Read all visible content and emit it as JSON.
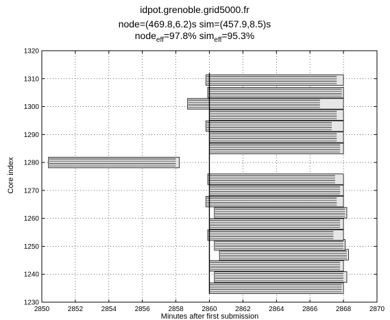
{
  "chart_data": {
    "type": "bar",
    "orientation": "horizontal",
    "title_lines": [
      {
        "text": "idpot.grenoble.grid5000.fr"
      },
      {
        "text": "node=(469.8,6.2)s sim=(457.9,8.5)s"
      },
      {
        "base1": "node",
        "sub1": "eff",
        "mid": "=97.8% sim",
        "sub2": "eff",
        "tail": "=95.3%"
      }
    ],
    "xlabel": "Minutes after first submission",
    "ylabel": "Core index",
    "xlim": [
      2850,
      2870
    ],
    "ylim": [
      1230,
      1320
    ],
    "xticks": [
      "2850",
      "2852",
      "2854",
      "2856",
      "2858",
      "2860",
      "2862",
      "2864",
      "2866",
      "2868",
      "2870"
    ],
    "yticks": [
      "1230",
      "1240",
      "1250",
      "1260",
      "1270",
      "1280",
      "1290",
      "1300",
      "1310",
      "1320"
    ],
    "grid": true,
    "reference_line_x": 2860,
    "tasks": [
      {
        "core": 1235,
        "start": 2860.0,
        "end": 2868.0,
        "sim_end": 2867.9
      },
      {
        "core": 1239,
        "start": 2860.3,
        "end": 2868.2,
        "sim_end": 2868.0
      },
      {
        "core": 1243,
        "start": 2860.0,
        "end": 2868.0,
        "sim_end": 2867.8
      },
      {
        "core": 1247,
        "start": 2860.6,
        "end": 2868.3,
        "sim_end": 2868.2
      },
      {
        "core": 1250.5,
        "start": 2860.3,
        "end": 2868.1,
        "sim_end": 2868.0
      },
      {
        "core": 1254,
        "start": 2859.9,
        "end": 2868.0,
        "sim_end": 2867.4
      },
      {
        "core": 1258,
        "start": 2860.0,
        "end": 2868.0,
        "sim_end": 2867.8
      },
      {
        "core": 1262,
        "start": 2860.3,
        "end": 2868.2,
        "sim_end": 2868.1
      },
      {
        "core": 1266,
        "start": 2859.8,
        "end": 2868.0,
        "sim_end": 2867.6
      },
      {
        "core": 1270,
        "start": 2860.0,
        "end": 2868.0,
        "sim_end": 2867.8
      },
      {
        "core": 1274,
        "start": 2859.9,
        "end": 2868.0,
        "sim_end": 2867.5
      },
      {
        "core": 1280,
        "start": 2850.4,
        "end": 2858.2,
        "sim_end": 2858.0
      },
      {
        "core": 1285,
        "start": 2860.0,
        "end": 2868.0,
        "sim_end": 2867.8
      },
      {
        "core": 1289,
        "start": 2860.0,
        "end": 2868.0,
        "sim_end": 2867.6
      },
      {
        "core": 1293,
        "start": 2859.8,
        "end": 2868.0,
        "sim_end": 2867.3
      },
      {
        "core": 1297,
        "start": 2860.0,
        "end": 2868.0,
        "sim_end": 2867.6
      },
      {
        "core": 1301,
        "start": 2858.7,
        "end": 2868.0,
        "sim_end": 2866.6
      },
      {
        "core": 1305,
        "start": 2859.9,
        "end": 2868.0,
        "sim_end": 2867.9
      },
      {
        "core": 1309.5,
        "start": 2859.8,
        "end": 2868.0,
        "sim_end": 2867.6
      }
    ]
  }
}
